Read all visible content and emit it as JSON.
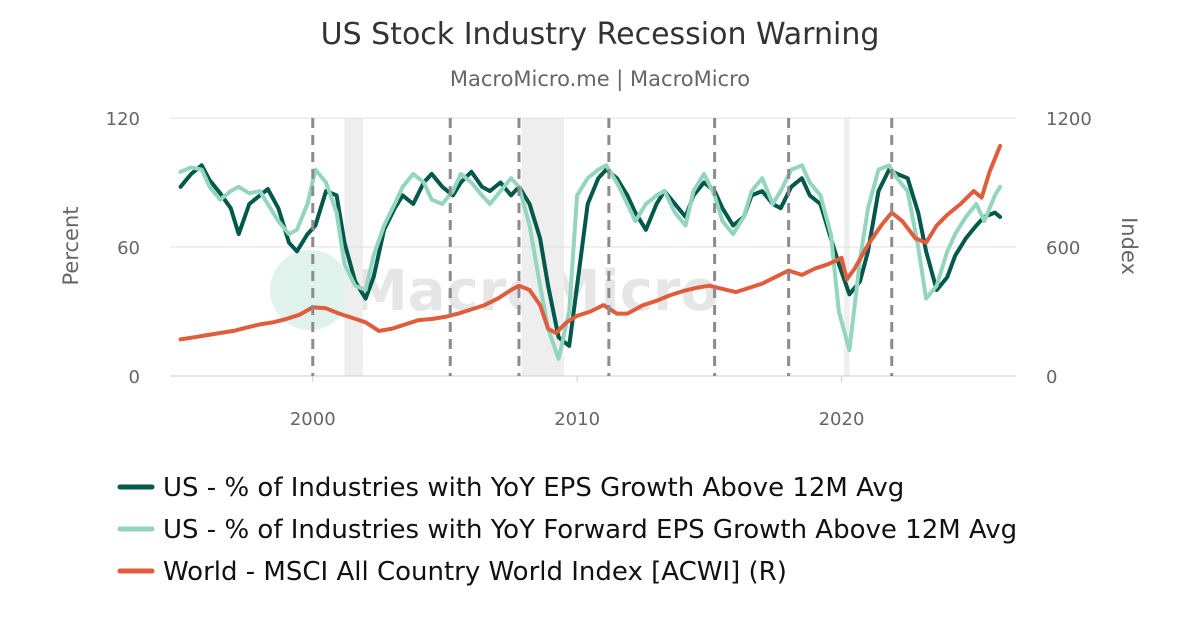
{
  "chart_data": {
    "type": "line",
    "title": "US Stock Industry Recession Warning",
    "subtitle": "MacroMicro.me | MacroMicro",
    "watermark": "MacroMicro",
    "ylabel_left": "Percent",
    "ylabel_right": "Index",
    "ylim_left": [
      0,
      120
    ],
    "ylim_right": [
      0,
      1200
    ],
    "yticks_left": [
      "0",
      "60",
      "120"
    ],
    "yticks_right": [
      "0",
      "600",
      "1200"
    ],
    "xlim": [
      1994.6,
      2026.6
    ],
    "xticks": [
      "2000",
      "2010",
      "2020"
    ],
    "grid": "horizontal",
    "legend_position": "bottom",
    "recession_shading": [
      [
        2001.2,
        2001.9
      ],
      [
        2007.9,
        2009.5
      ],
      [
        2020.1,
        2020.3
      ]
    ],
    "warning_lines": [
      2000.0,
      2005.2,
      2007.8,
      2011.2,
      2015.2,
      2018.0,
      2021.9
    ],
    "series": [
      {
        "name": "US - % of Industries with YoY EPS Growth Above 12M Avg",
        "axis": "left",
        "color": "#00594a",
        "x": [
          1995.0,
          1995.4,
          1995.8,
          1996.1,
          1996.5,
          1996.9,
          1997.2,
          1997.6,
          1998.0,
          1998.3,
          1998.7,
          1999.1,
          1999.4,
          1999.8,
          2000.1,
          2000.5,
          2000.9,
          2001.2,
          2001.6,
          2002.0,
          2002.3,
          2002.7,
          2003.1,
          2003.4,
          2003.8,
          2004.2,
          2004.5,
          2004.9,
          2005.3,
          2005.6,
          2006.0,
          2006.4,
          2006.7,
          2007.1,
          2007.5,
          2007.8,
          2008.2,
          2008.6,
          2008.9,
          2009.3,
          2009.7,
          2010.0,
          2010.4,
          2010.8,
          2011.1,
          2011.5,
          2011.9,
          2012.2,
          2012.6,
          2013.0,
          2013.3,
          2013.7,
          2014.1,
          2014.4,
          2014.8,
          2015.2,
          2015.5,
          2015.9,
          2016.3,
          2016.6,
          2017.0,
          2017.4,
          2017.7,
          2018.1,
          2018.5,
          2018.8,
          2019.2,
          2019.6,
          2019.9,
          2020.3,
          2020.7,
          2021.0,
          2021.4,
          2021.8,
          2022.1,
          2022.5,
          2022.9,
          2023.2,
          2023.6,
          2024.0,
          2024.3,
          2024.7,
          2025.1,
          2025.4,
          2025.8,
          2026.0
        ],
        "values": [
          88,
          94,
          98,
          91,
          85,
          78,
          66,
          80,
          84,
          87,
          78,
          62,
          58,
          66,
          70,
          86,
          84,
          62,
          44,
          36,
          46,
          68,
          78,
          84,
          80,
          90,
          94,
          88,
          84,
          90,
          95,
          88,
          86,
          90,
          84,
          88,
          80,
          64,
          42,
          18,
          14,
          42,
          80,
          92,
          96,
          92,
          84,
          76,
          68,
          80,
          86,
          80,
          74,
          84,
          90,
          86,
          78,
          70,
          74,
          84,
          86,
          80,
          78,
          88,
          92,
          84,
          80,
          64,
          52,
          38,
          44,
          58,
          86,
          96,
          94,
          92,
          76,
          58,
          40,
          46,
          56,
          64,
          70,
          74,
          76,
          74
        ]
      },
      {
        "name": "US - % of Industries with YoY Forward EPS Growth Above 12M Avg",
        "axis": "left",
        "color": "#94d5bd",
        "x": [
          1995.0,
          1995.4,
          1995.8,
          1996.1,
          1996.5,
          1996.9,
          1997.2,
          1997.6,
          1998.0,
          1998.3,
          1998.7,
          1999.1,
          1999.4,
          1999.8,
          2000.1,
          2000.5,
          2000.9,
          2001.2,
          2001.6,
          2002.0,
          2002.3,
          2002.7,
          2003.1,
          2003.4,
          2003.8,
          2004.2,
          2004.5,
          2004.9,
          2005.3,
          2005.6,
          2006.0,
          2006.4,
          2006.7,
          2007.1,
          2007.5,
          2007.8,
          2008.2,
          2008.6,
          2008.9,
          2009.3,
          2009.7,
          2010.0,
          2010.4,
          2010.8,
          2011.1,
          2011.5,
          2011.9,
          2012.2,
          2012.6,
          2013.0,
          2013.3,
          2013.7,
          2014.1,
          2014.4,
          2014.8,
          2015.2,
          2015.5,
          2015.9,
          2016.3,
          2016.6,
          2017.0,
          2017.4,
          2017.7,
          2018.1,
          2018.5,
          2018.8,
          2019.2,
          2019.6,
          2019.9,
          2020.3,
          2020.7,
          2021.0,
          2021.4,
          2021.8,
          2022.1,
          2022.5,
          2022.9,
          2023.2,
          2023.6,
          2024.0,
          2024.3,
          2024.7,
          2025.1,
          2025.4,
          2025.8,
          2026.0
        ],
        "values": [
          95,
          97,
          96,
          88,
          82,
          86,
          88,
          85,
          86,
          80,
          72,
          66,
          68,
          80,
          96,
          90,
          76,
          52,
          42,
          40,
          56,
          70,
          80,
          88,
          94,
          90,
          82,
          80,
          86,
          94,
          90,
          84,
          80,
          86,
          92,
          88,
          70,
          42,
          22,
          8,
          30,
          84,
          92,
          96,
          98,
          90,
          80,
          72,
          80,
          84,
          86,
          76,
          70,
          86,
          94,
          84,
          72,
          66,
          74,
          86,
          92,
          80,
          86,
          96,
          98,
          90,
          84,
          66,
          30,
          12,
          54,
          78,
          96,
          98,
          92,
          86,
          60,
          36,
          42,
          58,
          66,
          74,
          80,
          72,
          84,
          88
        ]
      },
      {
        "name": "World - MSCI All Country World Index [ACWI] (R)",
        "axis": "right",
        "color": "#e05c3c",
        "x": [
          1995.0,
          1995.5,
          1996.0,
          1996.5,
          1997.0,
          1997.5,
          1998.0,
          1998.5,
          1999.0,
          1999.5,
          2000.0,
          2000.5,
          2001.0,
          2001.5,
          2002.0,
          2002.5,
          2003.0,
          2003.5,
          2004.0,
          2004.5,
          2005.0,
          2005.5,
          2006.0,
          2006.5,
          2007.0,
          2007.5,
          2007.8,
          2008.2,
          2008.6,
          2008.9,
          2009.2,
          2009.6,
          2010.0,
          2010.5,
          2011.0,
          2011.5,
          2011.9,
          2012.5,
          2013.0,
          2013.5,
          2014.0,
          2014.5,
          2015.0,
          2015.5,
          2016.0,
          2016.5,
          2017.0,
          2017.5,
          2018.0,
          2018.5,
          2019.0,
          2019.5,
          2020.0,
          2020.2,
          2020.5,
          2021.0,
          2021.5,
          2021.9,
          2022.3,
          2022.8,
          2023.2,
          2023.6,
          2024.0,
          2024.5,
          2025.0,
          2025.3,
          2025.6,
          2026.0
        ],
        "values": [
          170,
          180,
          190,
          200,
          210,
          225,
          240,
          250,
          265,
          285,
          320,
          315,
          290,
          270,
          250,
          210,
          220,
          240,
          260,
          265,
          275,
          290,
          310,
          330,
          360,
          400,
          420,
          400,
          330,
          220,
          200,
          250,
          280,
          300,
          330,
          290,
          290,
          330,
          350,
          375,
          395,
          410,
          420,
          405,
          390,
          410,
          430,
          460,
          490,
          470,
          500,
          520,
          550,
          450,
          500,
          610,
          700,
          760,
          720,
          640,
          620,
          700,
          750,
          800,
          860,
          830,
          950,
          1070
        ]
      }
    ]
  }
}
